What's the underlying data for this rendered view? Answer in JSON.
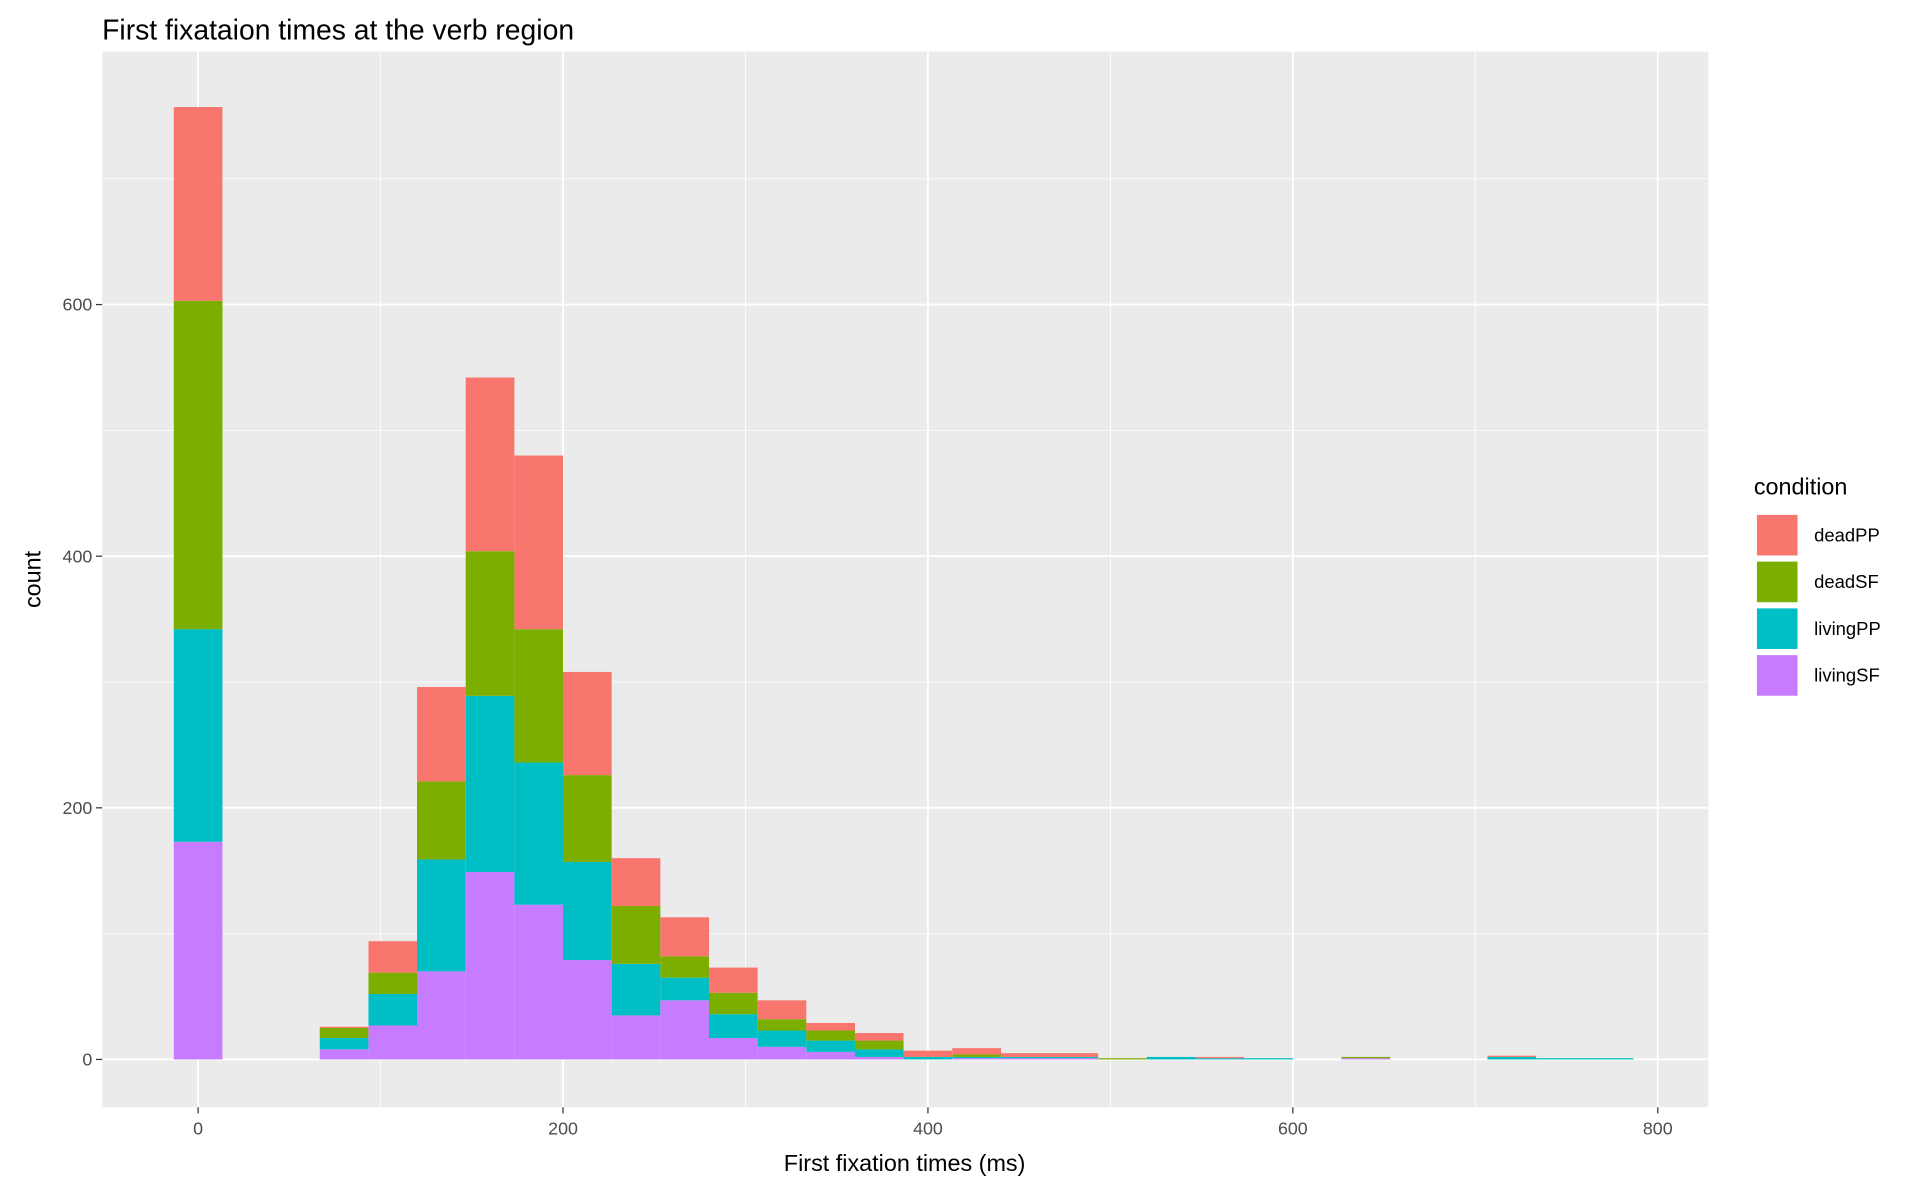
{
  "chart_data": {
    "type": "bar",
    "stacked": true,
    "title": "First fixataion times at the verb region",
    "xlabel": "First fixation times (ms)",
    "ylabel": "count",
    "xlim": [
      -52.6,
      827.7
    ],
    "ylim": [
      -38,
      801
    ],
    "xticks": [
      0,
      200,
      400,
      600,
      800
    ],
    "yticks": [
      0,
      200,
      400,
      600
    ],
    "binwidth": 26.67,
    "grid": true,
    "legend": {
      "title": "condition",
      "placement": "right"
    },
    "bin_centers": [
      0,
      80,
      106.7,
      133.3,
      160,
      186.7,
      213.3,
      240,
      266.7,
      293.3,
      320,
      346.7,
      373.3,
      400,
      426.7,
      453.3,
      480,
      506.7,
      533.3,
      560,
      586.7,
      640,
      720,
      746.7,
      773.3
    ],
    "series": [
      {
        "name": "livingSF",
        "color": "#C77CFF",
        "values": [
          173,
          8,
          27,
          70,
          149,
          123,
          79,
          35,
          47,
          17,
          10,
          6,
          2,
          0,
          1,
          1,
          1,
          0,
          0,
          0,
          0,
          1,
          0,
          0,
          0
        ]
      },
      {
        "name": "livingPP",
        "color": "#00BFC4",
        "values": [
          169,
          9,
          25,
          89,
          140,
          113,
          78,
          41,
          18,
          19,
          13,
          9,
          6,
          2,
          1,
          1,
          1,
          0,
          2,
          1,
          1,
          0,
          2,
          1,
          1
        ]
      },
      {
        "name": "deadSF",
        "color": "#7CAE00",
        "values": [
          261,
          8,
          17,
          62,
          115,
          106,
          69,
          46,
          17,
          17,
          9,
          8,
          7,
          0,
          2,
          0,
          0,
          1,
          0,
          0,
          0,
          1,
          0,
          0,
          0
        ]
      },
      {
        "name": "deadPP",
        "color": "#F8766D",
        "values": [
          154,
          1,
          25,
          75,
          138,
          138,
          82,
          38,
          31,
          20,
          15,
          6,
          6,
          5,
          5,
          3,
          3,
          0,
          0,
          1,
          0,
          0,
          1,
          0,
          0
        ]
      }
    ]
  }
}
